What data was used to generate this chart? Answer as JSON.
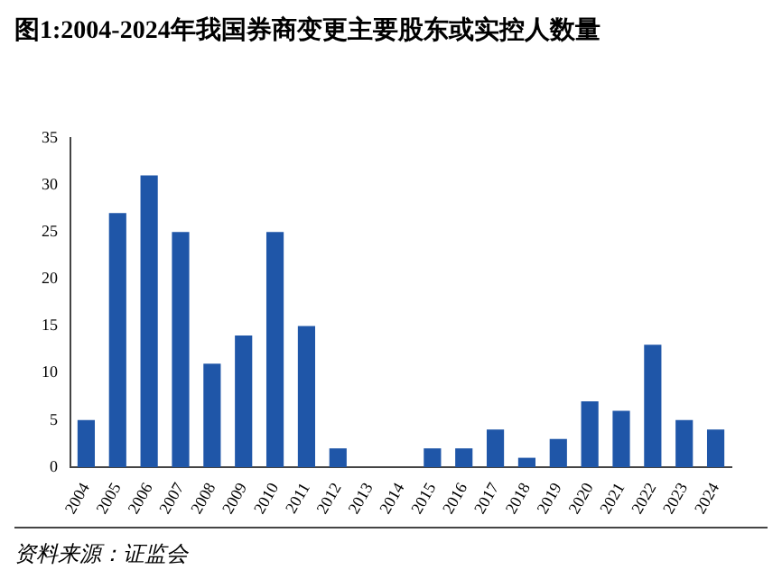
{
  "chart_data": {
    "type": "bar",
    "title": "图1:2004-2024年我国券商变更主要股东或实控人数量",
    "categories": [
      "2004",
      "2005",
      "2006",
      "2007",
      "2008",
      "2009",
      "2010",
      "2011",
      "2012",
      "2013",
      "2014",
      "2015",
      "2016",
      "2017",
      "2018",
      "2019",
      "2020",
      "2021",
      "2022",
      "2023",
      "2024"
    ],
    "values": [
      5,
      27,
      31,
      25,
      11,
      14,
      25,
      15,
      2,
      0,
      0,
      2,
      2,
      4,
      1,
      3,
      7,
      6,
      13,
      5,
      4
    ],
    "color": "#1f56a8",
    "ylim": [
      0,
      35
    ],
    "yticks": [
      0,
      5,
      10,
      15,
      20,
      25,
      30,
      35
    ],
    "grid": false,
    "legend": false,
    "annotations": [
      "资料来源：证监会"
    ]
  }
}
